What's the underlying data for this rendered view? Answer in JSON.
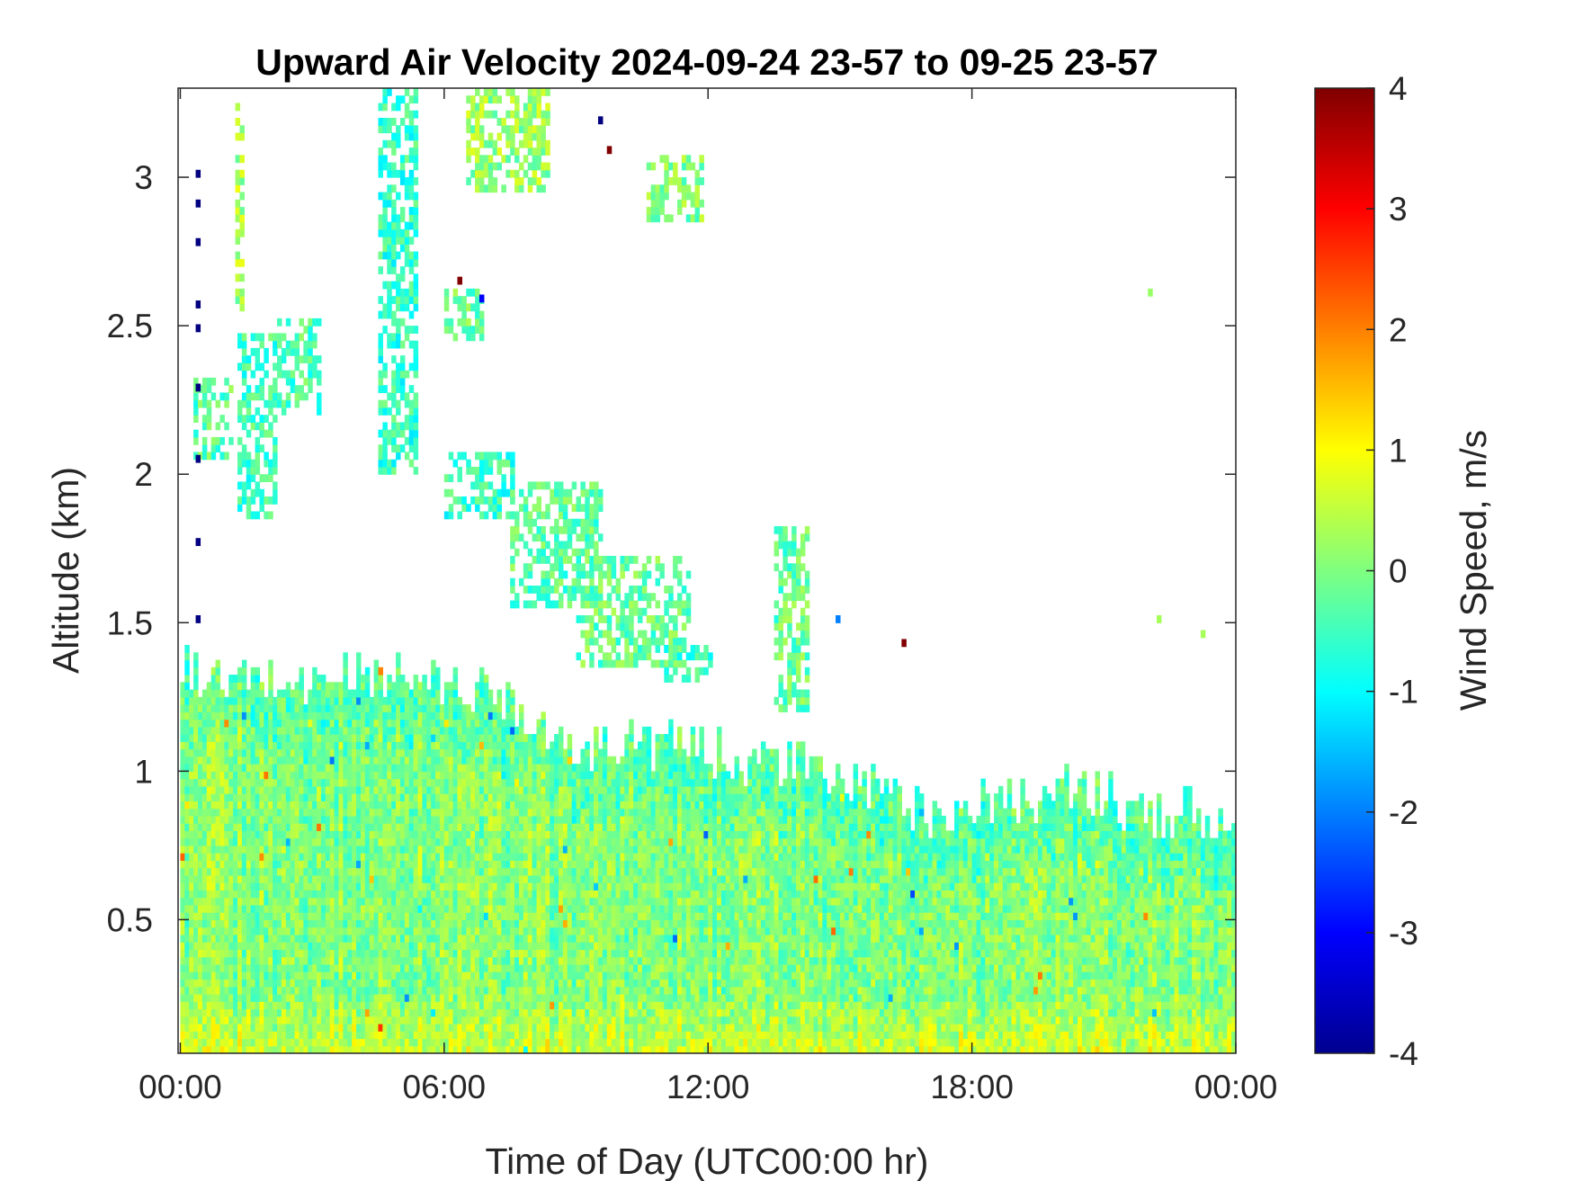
{
  "chart_data": {
    "type": "heatmap",
    "title": "Upward Air Velocity 2024-09-24 23-57 to 09-25 23-57",
    "xlabel": "Time of Day (UTC00:00 hr)",
    "ylabel": "Altitude (km)",
    "x_ticks": [
      {
        "value": 0,
        "label": "00:00"
      },
      {
        "value": 6,
        "label": "06:00"
      },
      {
        "value": 12,
        "label": "12:00"
      },
      {
        "value": 18,
        "label": "18:00"
      },
      {
        "value": 24,
        "label": "00:00"
      }
    ],
    "y_ticks": [
      {
        "value": 0.5,
        "label": "0.5"
      },
      {
        "value": 1,
        "label": "1"
      },
      {
        "value": 1.5,
        "label": "1.5"
      },
      {
        "value": 2,
        "label": "2"
      },
      {
        "value": 2.5,
        "label": "2.5"
      },
      {
        "value": 3,
        "label": "3"
      }
    ],
    "xlim": [
      -0.05,
      24
    ],
    "ylim": [
      0.05,
      3.3
    ],
    "grid": false,
    "colorbar": {
      "label": "Wind Speed, m/s",
      "colormap": "jet",
      "range": [
        -4,
        4
      ],
      "ticks": [
        {
          "value": -4,
          "label": "-4"
        },
        {
          "value": -3,
          "label": "-3"
        },
        {
          "value": -2,
          "label": "-2"
        },
        {
          "value": -1,
          "label": "-1"
        },
        {
          "value": 0,
          "label": "0"
        },
        {
          "value": 1,
          "label": "1"
        },
        {
          "value": 2,
          "label": "2"
        },
        {
          "value": 3,
          "label": "3"
        },
        {
          "value": 4,
          "label": "4"
        }
      ]
    },
    "grid_resolution": {
      "time_step_hours": 0.1,
      "altitude_step_km": 0.025
    },
    "cloud_top_km": [
      {
        "t": 0.0,
        "top": 1.33
      },
      {
        "t": 1.0,
        "top": 1.28
      },
      {
        "t": 2.0,
        "top": 1.3
      },
      {
        "t": 3.0,
        "top": 1.28
      },
      {
        "t": 4.0,
        "top": 1.32
      },
      {
        "t": 5.0,
        "top": 1.3
      },
      {
        "t": 6.0,
        "top": 1.27
      },
      {
        "t": 7.0,
        "top": 1.26
      },
      {
        "t": 8.0,
        "top": 1.18
      },
      {
        "t": 8.8,
        "top": 1.05
      },
      {
        "t": 10.0,
        "top": 1.1
      },
      {
        "t": 11.0,
        "top": 1.08
      },
      {
        "t": 12.0,
        "top": 1.05
      },
      {
        "t": 13.0,
        "top": 1.03
      },
      {
        "t": 14.0,
        "top": 1.0
      },
      {
        "t": 15.0,
        "top": 0.95
      },
      {
        "t": 16.0,
        "top": 0.92
      },
      {
        "t": 17.0,
        "top": 0.85
      },
      {
        "t": 18.0,
        "top": 0.86
      },
      {
        "t": 19.0,
        "top": 0.9
      },
      {
        "t": 20.0,
        "top": 0.93
      },
      {
        "t": 21.0,
        "top": 0.9
      },
      {
        "t": 22.0,
        "top": 0.82
      },
      {
        "t": 23.0,
        "top": 0.88
      },
      {
        "t": 24.0,
        "top": 0.72
      }
    ],
    "elevated_layers": [
      {
        "t_start": 0.3,
        "t_end": 1.1,
        "alt_low": 2.05,
        "alt_high": 2.3,
        "mean_w": -0.3
      },
      {
        "t_start": 1.3,
        "t_end": 2.2,
        "alt_low": 1.85,
        "alt_high": 2.45,
        "mean_w": -0.5
      },
      {
        "t_start": 2.2,
        "t_end": 3.2,
        "alt_low": 2.2,
        "alt_high": 2.5,
        "mean_w": -0.4
      },
      {
        "t_start": 1.25,
        "t_end": 1.45,
        "alt_low": 2.55,
        "alt_high": 3.25,
        "mean_w": 0.3
      },
      {
        "t_start": 4.5,
        "t_end": 5.3,
        "alt_low": 2.0,
        "alt_high": 3.3,
        "mean_w": -0.6
      },
      {
        "t_start": 6.0,
        "t_end": 7.5,
        "alt_low": 1.85,
        "alt_high": 2.05,
        "mean_w": -0.6
      },
      {
        "t_start": 7.5,
        "t_end": 9.5,
        "alt_low": 1.55,
        "alt_high": 1.95,
        "mean_w": -0.3
      },
      {
        "t_start": 9.0,
        "t_end": 11.5,
        "alt_low": 1.35,
        "alt_high": 1.7,
        "mean_w": -0.2
      },
      {
        "t_start": 6.5,
        "t_end": 8.3,
        "alt_low": 2.95,
        "alt_high": 3.3,
        "mean_w": 0.2
      },
      {
        "t_start": 10.6,
        "t_end": 11.8,
        "alt_low": 2.85,
        "alt_high": 3.05,
        "mean_w": 0.0
      },
      {
        "t_start": 6.0,
        "t_end": 6.8,
        "alt_low": 2.45,
        "alt_high": 2.6,
        "mean_w": -0.2
      },
      {
        "t_start": 11.0,
        "t_end": 12.0,
        "alt_low": 1.3,
        "alt_high": 1.4,
        "mean_w": -0.6
      },
      {
        "t_start": 13.5,
        "t_end": 14.2,
        "alt_low": 1.2,
        "alt_high": 1.8,
        "mean_w": -0.2
      }
    ],
    "isolated_points": [
      {
        "t": 0.35,
        "alt": 3.0,
        "w": -4
      },
      {
        "t": 0.35,
        "alt": 2.9,
        "w": -4
      },
      {
        "t": 0.35,
        "alt": 2.77,
        "w": -4
      },
      {
        "t": 0.35,
        "alt": 2.56,
        "w": -4
      },
      {
        "t": 0.35,
        "alt": 2.48,
        "w": -4
      },
      {
        "t": 0.35,
        "alt": 2.28,
        "w": -4
      },
      {
        "t": 0.35,
        "alt": 2.04,
        "w": -4
      },
      {
        "t": 0.35,
        "alt": 1.76,
        "w": -4
      },
      {
        "t": 0.35,
        "alt": 1.5,
        "w": -4
      },
      {
        "t": 9.5,
        "alt": 3.18,
        "w": -4
      },
      {
        "t": 9.7,
        "alt": 3.08,
        "w": 4
      },
      {
        "t": 6.3,
        "alt": 2.64,
        "w": 4
      },
      {
        "t": 6.8,
        "alt": 2.58,
        "w": -3
      },
      {
        "t": 16.4,
        "alt": 1.42,
        "w": 4
      },
      {
        "t": 14.9,
        "alt": 1.5,
        "w": -2
      },
      {
        "t": 22.0,
        "alt": 2.6,
        "w": 0.2
      },
      {
        "t": 22.2,
        "alt": 1.5,
        "w": 0.3
      },
      {
        "t": 23.2,
        "alt": 1.45,
        "w": 0.3
      }
    ]
  }
}
